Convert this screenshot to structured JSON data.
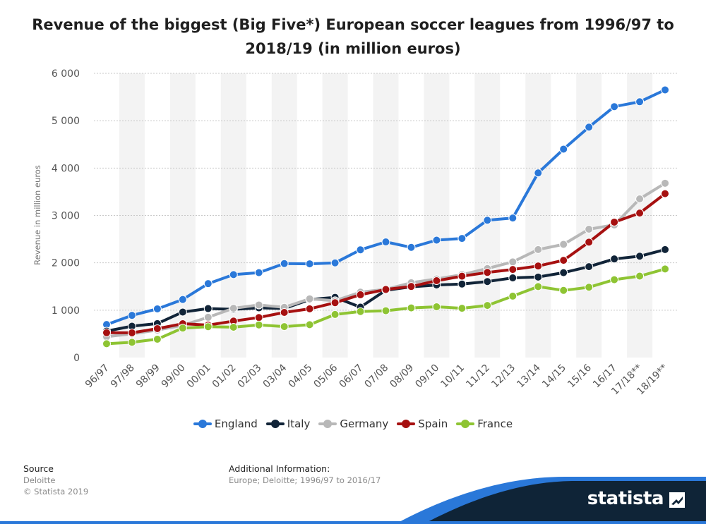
{
  "header": {
    "title_line1": "Revenue of the biggest (Big Five*) European soccer leagues from 1996/97 to",
    "title_line2": "2018/19 (in million euros)"
  },
  "chart_data": {
    "type": "line",
    "title": "Revenue of the biggest (Big Five*) European soccer leagues from 1996/97 to 2018/19 (in million euros)",
    "xlabel": "",
    "ylabel": "Revenue in million euros",
    "ylim": [
      0,
      6000
    ],
    "yticks": [
      0,
      1000,
      2000,
      3000,
      4000,
      5000,
      6000
    ],
    "ytick_labels": [
      "0",
      "1 000",
      "2 000",
      "3 000",
      "4 000",
      "5 000",
      "6 000"
    ],
    "grid": true,
    "legend_position": "bottom-center",
    "categories": [
      "96/97",
      "97/98",
      "98/99",
      "99/00",
      "00/01",
      "01/02",
      "02/03",
      "03/04",
      "04/05",
      "05/06",
      "06/07",
      "07/08",
      "08/09",
      "09/10",
      "10/11",
      "11/12",
      "12/13",
      "13/14",
      "14/15",
      "15/16",
      "16/17",
      "17/18**",
      "18/19**"
    ],
    "series": [
      {
        "name": "England",
        "color": "#2a78d9",
        "values": [
          697,
          891,
          1028,
          1226,
          1561,
          1751,
          1792,
          1984,
          1979,
          1999,
          2275,
          2441,
          2326,
          2479,
          2515,
          2899,
          2946,
          3898,
          4400,
          4865,
          5297,
          5400,
          5650
        ]
      },
      {
        "name": "Italy",
        "color": "#112438",
        "values": [
          559,
          662,
          717,
          961,
          1034,
          1019,
          1049,
          1037,
          1224,
          1272,
          1064,
          1421,
          1494,
          1532,
          1553,
          1605,
          1682,
          1700,
          1792,
          1919,
          2082,
          2140,
          2280
        ]
      },
      {
        "name": "Germany",
        "color": "#b8b8b8",
        "values": [
          440,
          500,
          580,
          680,
          850,
          1040,
          1110,
          1060,
          1240,
          1200,
          1380,
          1440,
          1580,
          1660,
          1750,
          1880,
          2020,
          2280,
          2390,
          2710,
          2800,
          3350,
          3680
        ]
      },
      {
        "name": "Spain",
        "color": "#a61010",
        "values": [
          524,
          523,
          611,
          714,
          685,
          770,
          845,
          953,
          1029,
          1158,
          1326,
          1438,
          1501,
          1622,
          1718,
          1797,
          1859,
          1933,
          2053,
          2437,
          2859,
          3050,
          3460
        ]
      },
      {
        "name": "France",
        "color": "#8ec433",
        "values": [
          292,
          322,
          388,
          623,
          652,
          641,
          689,
          654,
          694,
          910,
          972,
          989,
          1048,
          1072,
          1040,
          1100,
          1297,
          1498,
          1418,
          1485,
          1643,
          1720,
          1870
        ]
      }
    ]
  },
  "footer": {
    "source_heading": "Source",
    "source_name": "Deloitte",
    "copyright": "© Statista 2019",
    "additional_heading": "Additional Information:",
    "additional_text": "Europe; Deloitte; 1996/97 to 2016/17"
  },
  "brand": {
    "name": "statista",
    "band_color": "#0f2437",
    "accent_color": "#2a78d9"
  }
}
